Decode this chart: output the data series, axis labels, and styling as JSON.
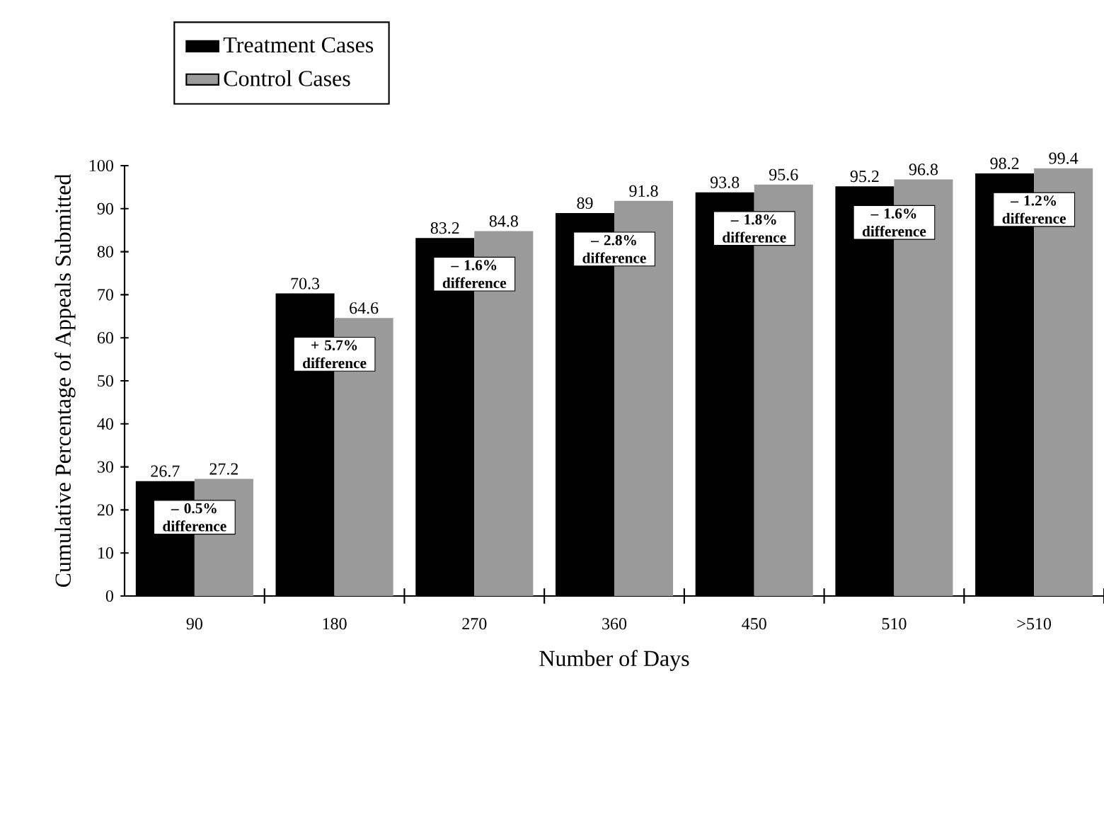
{
  "chart_data": {
    "type": "bar",
    "xlabel": "Number of Days",
    "ylabel": "Cumulative Percentage of Appeals Submitted",
    "categories": [
      "90",
      "180",
      "270",
      "360",
      "450",
      "510",
      ">510"
    ],
    "series": [
      {
        "name": "Treatment Cases",
        "color": "#000000",
        "values": [
          26.7,
          70.3,
          83.2,
          89,
          93.8,
          95.2,
          98.2
        ]
      },
      {
        "name": "Control Cases",
        "color": "#9a9a9a",
        "values": [
          27.2,
          64.6,
          84.8,
          91.8,
          95.6,
          96.8,
          99.4
        ]
      }
    ],
    "annotations": [
      "– 0.5% difference",
      "+ 5.7% difference",
      "– 1.6% difference",
      "– 2.8% difference",
      "– 1.8% difference",
      "– 1.6% difference",
      "– 1.2% difference"
    ],
    "ylim": [
      0,
      100
    ],
    "yticks": [
      0,
      10,
      20,
      30,
      40,
      50,
      60,
      70,
      80,
      90,
      100
    ],
    "data_labels": true,
    "grid": false,
    "legend": "top left"
  }
}
